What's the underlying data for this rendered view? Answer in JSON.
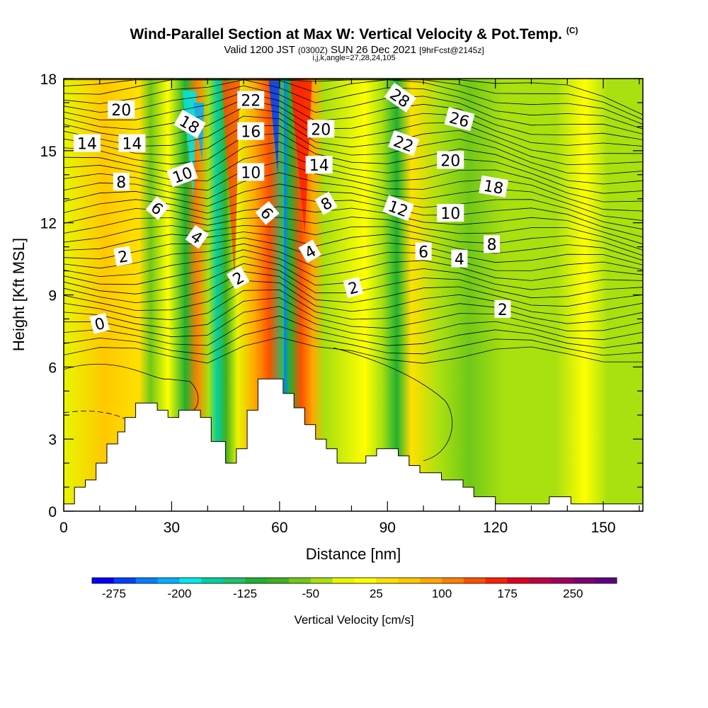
{
  "title": {
    "main": "Wind-Parallel Section at Max W: Vertical Velocity & Pot.Temp.",
    "main_tag": "(C)",
    "sub_prefix": "Valid 1200 JST",
    "sub_small": "(0300Z)",
    "sub_date": "SUN 26 Dec 2021",
    "sub_fcst": "[9hrFcst@2145z]",
    "params": "i,j,k,angle=27,28,24,105"
  },
  "chart_data": {
    "type": "heatmap",
    "xlabel": "Distance [nm]",
    "ylabel": "Height [Kft MSL]",
    "xlim": [
      0,
      161
    ],
    "ylim": [
      0,
      18
    ],
    "x_ticks": [
      0,
      30,
      60,
      90,
      120,
      150
    ],
    "y_ticks": [
      0,
      3,
      6,
      9,
      12,
      15,
      18
    ],
    "colorbar": {
      "label": "Vertical Velocity [cm/s]",
      "tick_labels": [
        "-275",
        "-200",
        "-125",
        "-50",
        "25",
        "100",
        "175",
        "250"
      ],
      "tick_values": [
        -275,
        -200,
        -125,
        -50,
        25,
        100,
        175,
        250
      ],
      "range": [
        -300,
        300
      ],
      "colors": [
        "#0000ff",
        "#0040ff",
        "#0080ff",
        "#00b0ff",
        "#00e8e8",
        "#00d0a0",
        "#20c070",
        "#20b030",
        "#40b020",
        "#70c818",
        "#a8e010",
        "#e8f500",
        "#ffff00",
        "#ffe000",
        "#ffc800",
        "#ffa800",
        "#ff8000",
        "#ff5000",
        "#ff2000",
        "#e00020",
        "#c00040",
        "#a00060",
        "#800070",
        "#600080"
      ]
    },
    "theta_contour_labels": [
      {
        "text": "0",
        "x": 10,
        "y": 7.8,
        "rot": -15
      },
      {
        "text": "2",
        "x": 16.5,
        "y": 10.6,
        "rot": -10
      },
      {
        "text": "2",
        "x": 48.5,
        "y": 9.7,
        "rot": -30
      },
      {
        "text": "2",
        "x": 80.5,
        "y": 9.3,
        "rot": -15
      },
      {
        "text": "2",
        "x": 122,
        "y": 8.4,
        "rot": 0
      },
      {
        "text": "4",
        "x": 37,
        "y": 11.4,
        "rot": 35
      },
      {
        "text": "4",
        "x": 68.5,
        "y": 10.8,
        "rot": -30
      },
      {
        "text": "4",
        "x": 110,
        "y": 10.5,
        "rot": 0
      },
      {
        "text": "6",
        "x": 26,
        "y": 12.6,
        "rot": 40
      },
      {
        "text": "6",
        "x": 56.5,
        "y": 12.4,
        "rot": 50
      },
      {
        "text": "6",
        "x": 100,
        "y": 10.8,
        "rot": 0
      },
      {
        "text": "8",
        "x": 16,
        "y": 13.7,
        "rot": 0
      },
      {
        "text": "8",
        "x": 73,
        "y": 12.8,
        "rot": -30
      },
      {
        "text": "8",
        "x": 119,
        "y": 11.1,
        "rot": 0
      },
      {
        "text": "10",
        "x": 33,
        "y": 14.0,
        "rot": -20
      },
      {
        "text": "10",
        "x": 52,
        "y": 14.1,
        "rot": 0
      },
      {
        "text": "10",
        "x": 107.5,
        "y": 12.4,
        "rot": 0
      },
      {
        "text": "12",
        "x": 93,
        "y": 12.6,
        "rot": 20
      },
      {
        "text": "14",
        "x": 6.5,
        "y": 15.3,
        "rot": 0
      },
      {
        "text": "14",
        "x": 19,
        "y": 15.3,
        "rot": 0
      },
      {
        "text": "14",
        "x": 71,
        "y": 14.4,
        "rot": 0
      },
      {
        "text": "16",
        "x": 52,
        "y": 15.8,
        "rot": 0
      },
      {
        "text": "18",
        "x": 35,
        "y": 16.1,
        "rot": 30
      },
      {
        "text": "18",
        "x": 119.5,
        "y": 13.5,
        "rot": 10
      },
      {
        "text": "20",
        "x": 16,
        "y": 16.7,
        "rot": 0
      },
      {
        "text": "20",
        "x": 71.5,
        "y": 15.9,
        "rot": 0
      },
      {
        "text": "20",
        "x": 107.5,
        "y": 14.6,
        "rot": 0
      },
      {
        "text": "22",
        "x": 52,
        "y": 17.1,
        "rot": 0
      },
      {
        "text": "22",
        "x": 94.5,
        "y": 15.3,
        "rot": 20
      },
      {
        "text": "26",
        "x": 110,
        "y": 16.3,
        "rot": 15
      },
      {
        "text": "28",
        "x": 93.5,
        "y": 17.2,
        "rot": 35
      }
    ],
    "terrain_profile": [
      [
        0,
        0.3
      ],
      [
        3,
        0.3
      ],
      [
        3,
        1.0
      ],
      [
        6,
        1.0
      ],
      [
        6,
        1.3
      ],
      [
        9,
        1.3
      ],
      [
        9,
        2.0
      ],
      [
        12,
        2.0
      ],
      [
        12,
        2.8
      ],
      [
        15,
        2.8
      ],
      [
        15,
        3.3
      ],
      [
        17,
        3.3
      ],
      [
        17,
        3.9
      ],
      [
        20,
        3.9
      ],
      [
        20,
        4.5
      ],
      [
        26,
        4.5
      ],
      [
        26,
        4.2
      ],
      [
        29,
        4.2
      ],
      [
        29,
        3.9
      ],
      [
        32,
        3.9
      ],
      [
        32,
        4.2
      ],
      [
        38,
        4.2
      ],
      [
        38,
        3.9
      ],
      [
        41,
        3.9
      ],
      [
        41,
        2.9
      ],
      [
        45,
        2.9
      ],
      [
        45,
        2.0
      ],
      [
        48,
        2.0
      ],
      [
        48,
        2.6
      ],
      [
        51,
        2.6
      ],
      [
        51,
        4.2
      ],
      [
        54,
        4.2
      ],
      [
        54,
        5.5
      ],
      [
        61,
        5.5
      ],
      [
        61,
        4.9
      ],
      [
        64,
        4.9
      ],
      [
        64,
        4.3
      ],
      [
        67,
        4.3
      ],
      [
        67,
        3.6
      ],
      [
        70,
        3.6
      ],
      [
        70,
        3.0
      ],
      [
        73,
        3.0
      ],
      [
        73,
        2.6
      ],
      [
        76,
        2.6
      ],
      [
        76,
        2.0
      ],
      [
        84,
        2.0
      ],
      [
        84,
        2.3
      ],
      [
        87,
        2.3
      ],
      [
        87,
        2.6
      ],
      [
        93,
        2.6
      ],
      [
        93,
        2.3
      ],
      [
        96,
        2.3
      ],
      [
        96,
        1.9
      ],
      [
        99,
        1.9
      ],
      [
        99,
        1.6
      ],
      [
        105,
        1.6
      ],
      [
        105,
        1.3
      ],
      [
        111,
        1.3
      ],
      [
        111,
        1.0
      ],
      [
        114,
        1.0
      ],
      [
        114,
        0.6
      ],
      [
        120,
        0.6
      ],
      [
        120,
        0.3
      ],
      [
        130,
        0.3
      ],
      [
        130,
        0.3
      ],
      [
        135,
        0.3
      ],
      [
        135,
        0.6
      ],
      [
        141,
        0.6
      ],
      [
        141,
        0.3
      ],
      [
        161,
        0.3
      ]
    ]
  }
}
